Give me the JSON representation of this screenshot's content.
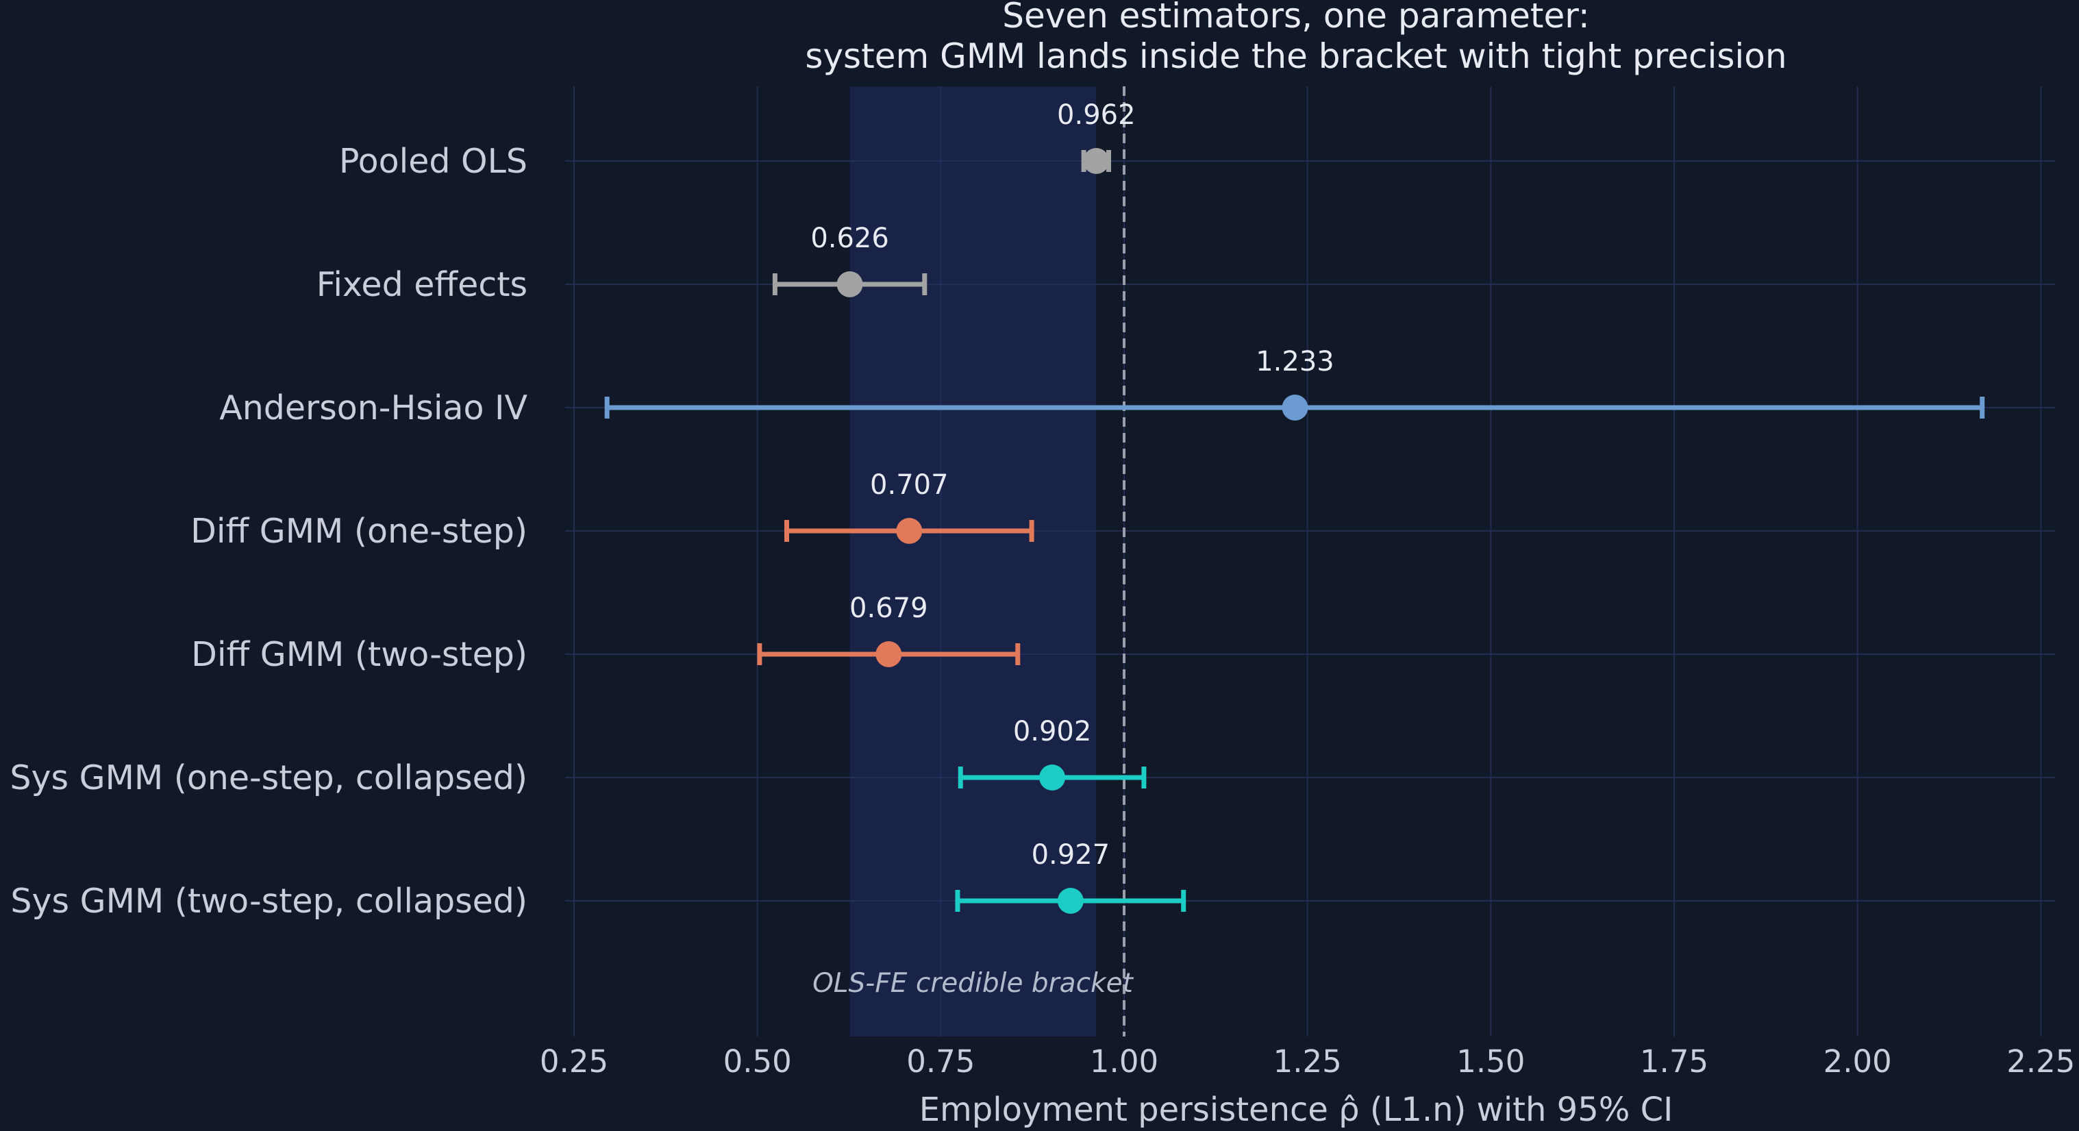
{
  "chart_data": {
    "type": "forest",
    "title_line1": "Seven estimators, one parameter:",
    "title_line2": "system GMM lands inside the bracket with tight precision",
    "xlabel": "Employment persistence  ρ̂  (L1.n) with 95% CI",
    "xlim": [
      0.25,
      2.27
    ],
    "xticks": [
      0.25,
      0.5,
      0.75,
      1.0,
      1.25,
      1.5,
      1.75,
      2.0,
      2.25
    ],
    "xtick_labels": [
      "0.25",
      "0.50",
      "0.75",
      "1.00",
      "1.25",
      "1.50",
      "1.75",
      "2.00",
      "2.25"
    ],
    "grid": true,
    "reference_line": 1.0,
    "band": {
      "from": 0.626,
      "to": 0.962,
      "label": "OLS-FE credible bracket"
    },
    "estimates": [
      {
        "label": "Pooled OLS",
        "value": 0.962,
        "value_label": "0.962",
        "ci_low": 0.945,
        "ci_high": 0.979,
        "color": "#a3a3a3"
      },
      {
        "label": "Fixed effects",
        "value": 0.626,
        "value_label": "0.626",
        "ci_low": 0.524,
        "ci_high": 0.728,
        "color": "#a3a3a3"
      },
      {
        "label": "Anderson-Hsiao IV",
        "value": 1.233,
        "value_label": "1.233",
        "ci_low": 0.295,
        "ci_high": 2.17,
        "color": "#6b9bd1"
      },
      {
        "label": "Diff GMM (one-step)",
        "value": 0.707,
        "value_label": "0.707",
        "ci_low": 0.54,
        "ci_high": 0.874,
        "color": "#e07a5a"
      },
      {
        "label": "Diff GMM (two-step)",
        "value": 0.679,
        "value_label": "0.679",
        "ci_low": 0.503,
        "ci_high": 0.855,
        "color": "#e07a5a"
      },
      {
        "label": "Sys GMM (one-step, collapsed)",
        "value": 0.902,
        "value_label": "0.902",
        "ci_low": 0.777,
        "ci_high": 1.027,
        "color": "#1ccdc5"
      },
      {
        "label": "Sys GMM (two-step, collapsed)",
        "value": 0.927,
        "value_label": "0.927",
        "ci_low": 0.773,
        "ci_high": 1.081,
        "color": "#1ccdc5"
      }
    ]
  }
}
